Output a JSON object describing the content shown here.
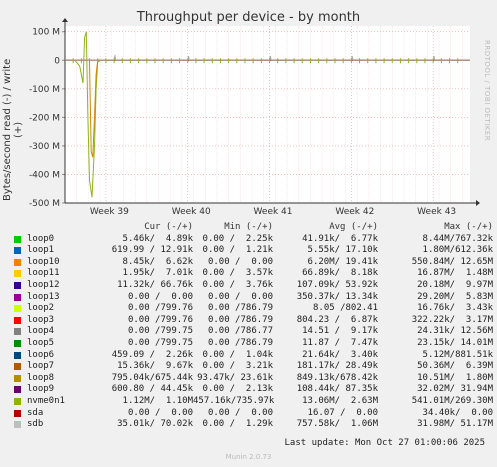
{
  "title": "Throughput per device - by month",
  "vendor": "RRDTOOL / TOBI OETIKER",
  "last_update": "Last update: Mon Oct 27 01:00:06 2025",
  "version": "Munin 2.0.73",
  "legend_headers": {
    "cur": "Cur (-/+)",
    "min": "Min (-/+)",
    "avg": "Avg (-/+)",
    "max": "Max (-/+)"
  },
  "chart_data": {
    "type": "line",
    "title": "Throughput per device - by month",
    "ylabel": "Bytes/second read (-) / write (+)",
    "xlabel": "",
    "ylim": [
      -500,
      120
    ],
    "yunit": "M",
    "yticks": [
      {
        "value": 100,
        "label": "100 M"
      },
      {
        "value": 0,
        "label": "0"
      },
      {
        "value": -100,
        "label": "-100 M"
      },
      {
        "value": -200,
        "label": "-200 M"
      },
      {
        "value": -300,
        "label": "-300 M"
      },
      {
        "value": -400,
        "label": "-400 M"
      },
      {
        "value": -500,
        "label": "-500 M"
      }
    ],
    "xticks": [
      {
        "pos": 0.5,
        "label": "Week 39"
      },
      {
        "pos": 1.5,
        "label": "Week 40"
      },
      {
        "pos": 2.5,
        "label": "Week 41"
      },
      {
        "pos": 3.5,
        "label": "Week 42"
      },
      {
        "pos": 4.5,
        "label": "Week 43"
      }
    ],
    "xlim": [
      0,
      4.95
    ],
    "grid": true,
    "series": [
      {
        "name": "nvme0n1",
        "color": "#8fb31a",
        "values": [
          [
            0,
            0
          ],
          [
            0.12,
            0
          ],
          [
            0.18,
            -20
          ],
          [
            0.22,
            -80
          ],
          [
            0.24,
            80
          ],
          [
            0.26,
            100
          ],
          [
            0.28,
            -200
          ],
          [
            0.3,
            -420
          ],
          [
            0.33,
            -480
          ],
          [
            0.36,
            -300
          ],
          [
            0.38,
            -100
          ],
          [
            0.4,
            -5
          ],
          [
            0.45,
            0
          ],
          [
            4.95,
            0
          ]
        ]
      },
      {
        "name": "loop8",
        "color": "#cc8800",
        "values": [
          [
            0,
            0
          ],
          [
            0.3,
            0
          ],
          [
            0.32,
            -320
          ],
          [
            0.34,
            -340
          ],
          [
            0.36,
            -200
          ],
          [
            0.38,
            -50
          ],
          [
            0.4,
            0
          ],
          [
            4.95,
            0
          ]
        ]
      },
      {
        "name": "sda",
        "color": "#cc0000",
        "values": [
          [
            0,
            0
          ],
          [
            4.95,
            0
          ]
        ]
      },
      {
        "name": "sdb",
        "color": "#aaaaaa",
        "values": [
          [
            0,
            0
          ],
          [
            0.6,
            0
          ],
          [
            0.61,
            18
          ],
          [
            0.62,
            0
          ],
          [
            1.5,
            0
          ],
          [
            1.51,
            15
          ],
          [
            1.52,
            0
          ],
          [
            2.5,
            0
          ],
          [
            2.51,
            15
          ],
          [
            2.52,
            0
          ],
          [
            3.5,
            0
          ],
          [
            3.51,
            15
          ],
          [
            3.52,
            0
          ],
          [
            4.5,
            0
          ],
          [
            4.51,
            15
          ],
          [
            4.52,
            0
          ],
          [
            4.95,
            0
          ]
        ]
      }
    ],
    "legend": [
      {
        "name": "loop0",
        "color": "#00cc00",
        "cur": " 5.46k/  4.89k",
        "min": "0.00 /  2.25k",
        "avg": " 41.91k/  6.77k",
        "max": "  8.44M/767.32k"
      },
      {
        "name": "loop1",
        "color": "#0066b3",
        "cur": "619.99 / 12.91k",
        "min": "0.00 /  1.21k",
        "avg": "  5.55k/ 17.10k",
        "max": "  1.80M/612.36k"
      },
      {
        "name": "loop10",
        "color": "#ff8000",
        "cur": " 8.45k/  6.62k",
        "min": "0.00 /  0.00",
        "avg": "  6.20M/ 19.41k",
        "max": "550.84M/ 12.65M"
      },
      {
        "name": "loop11",
        "color": "#ffcc00",
        "cur": " 1.95k/  7.01k",
        "min": "0.00 /  3.57k",
        "avg": " 66.89k/  8.18k",
        "max": " 16.87M/  1.48M"
      },
      {
        "name": "loop12",
        "color": "#330099",
        "cur": "11.32k/ 66.76k",
        "min": "0.00 /  3.76k",
        "avg": "107.09k/ 53.92k",
        "max": " 20.18M/  9.97M"
      },
      {
        "name": "loop13",
        "color": "#990099",
        "cur": " 0.00 /  0.00",
        "min": "0.00 /  0.00",
        "avg": "350.37k/ 13.34k",
        "max": " 29.20M/  5.83M"
      },
      {
        "name": "loop2",
        "color": "#ccff00",
        "cur": " 0.00 /799.76",
        "min": "0.00 /786.79",
        "avg": "  8.05 /802.41",
        "max": " 16.76k/  3.43k"
      },
      {
        "name": "loop3",
        "color": "#ff0000",
        "cur": " 0.00 /799.76",
        "min": "0.00 /786.79",
        "avg": "804.23 /  6.87k",
        "max": "322.22k/  3.17M"
      },
      {
        "name": "loop4",
        "color": "#808080",
        "cur": " 0.00 /799.75",
        "min": "0.00 /786.77",
        "avg": " 14.51 /  9.17k",
        "max": " 24.31k/ 12.56M"
      },
      {
        "name": "loop5",
        "color": "#008f00",
        "cur": " 0.00 /799.75",
        "min": "0.00 /786.79",
        "avg": " 11.87 /  7.47k",
        "max": " 23.15k/ 14.01M"
      },
      {
        "name": "loop6",
        "color": "#00487d",
        "cur": "459.09 /  2.26k",
        "min": "0.00 /  1.04k",
        "avg": " 21.64k/  3.40k",
        "max": "  5.12M/881.51k"
      },
      {
        "name": "loop7",
        "color": "#b35a00",
        "cur": "15.36k/  9.67k",
        "min": "0.00 /  3.21k",
        "avg": "181.17k/ 28.49k",
        "max": " 50.36M/  6.39M"
      },
      {
        "name": "loop8",
        "color": "#b38f00",
        "cur": "795.04k/675.44k",
        "min": "93.47k/ 23.61k",
        "avg": "849.13k/678.42k",
        "max": " 10.51M/  1.80M"
      },
      {
        "name": "loop9",
        "color": "#6b006b",
        "cur": "600.80 / 44.45k",
        "min": "0.00 /  2.13k",
        "avg": "108.44k/ 87.35k",
        "max": " 32.02M/ 31.94M"
      },
      {
        "name": "nvme0n1",
        "color": "#8fb300",
        "cur": " 1.12M/  1.10M",
        "min": "457.16k/735.97k",
        "avg": " 13.06M/  2.63M",
        "max": "541.01M/269.30M"
      },
      {
        "name": "sda",
        "color": "#b30000",
        "cur": " 0.00 /  0.00",
        "min": "0.00 /  0.00",
        "avg": " 16.07 /  0.00",
        "max": " 34.40k/  0.00"
      },
      {
        "name": "sdb",
        "color": "#bebebe",
        "cur": "35.01k/ 70.02k",
        "min": "0.00 /  1.29k",
        "avg": "757.58k/  1.06M",
        "max": " 31.98M/ 51.17M"
      }
    ]
  }
}
